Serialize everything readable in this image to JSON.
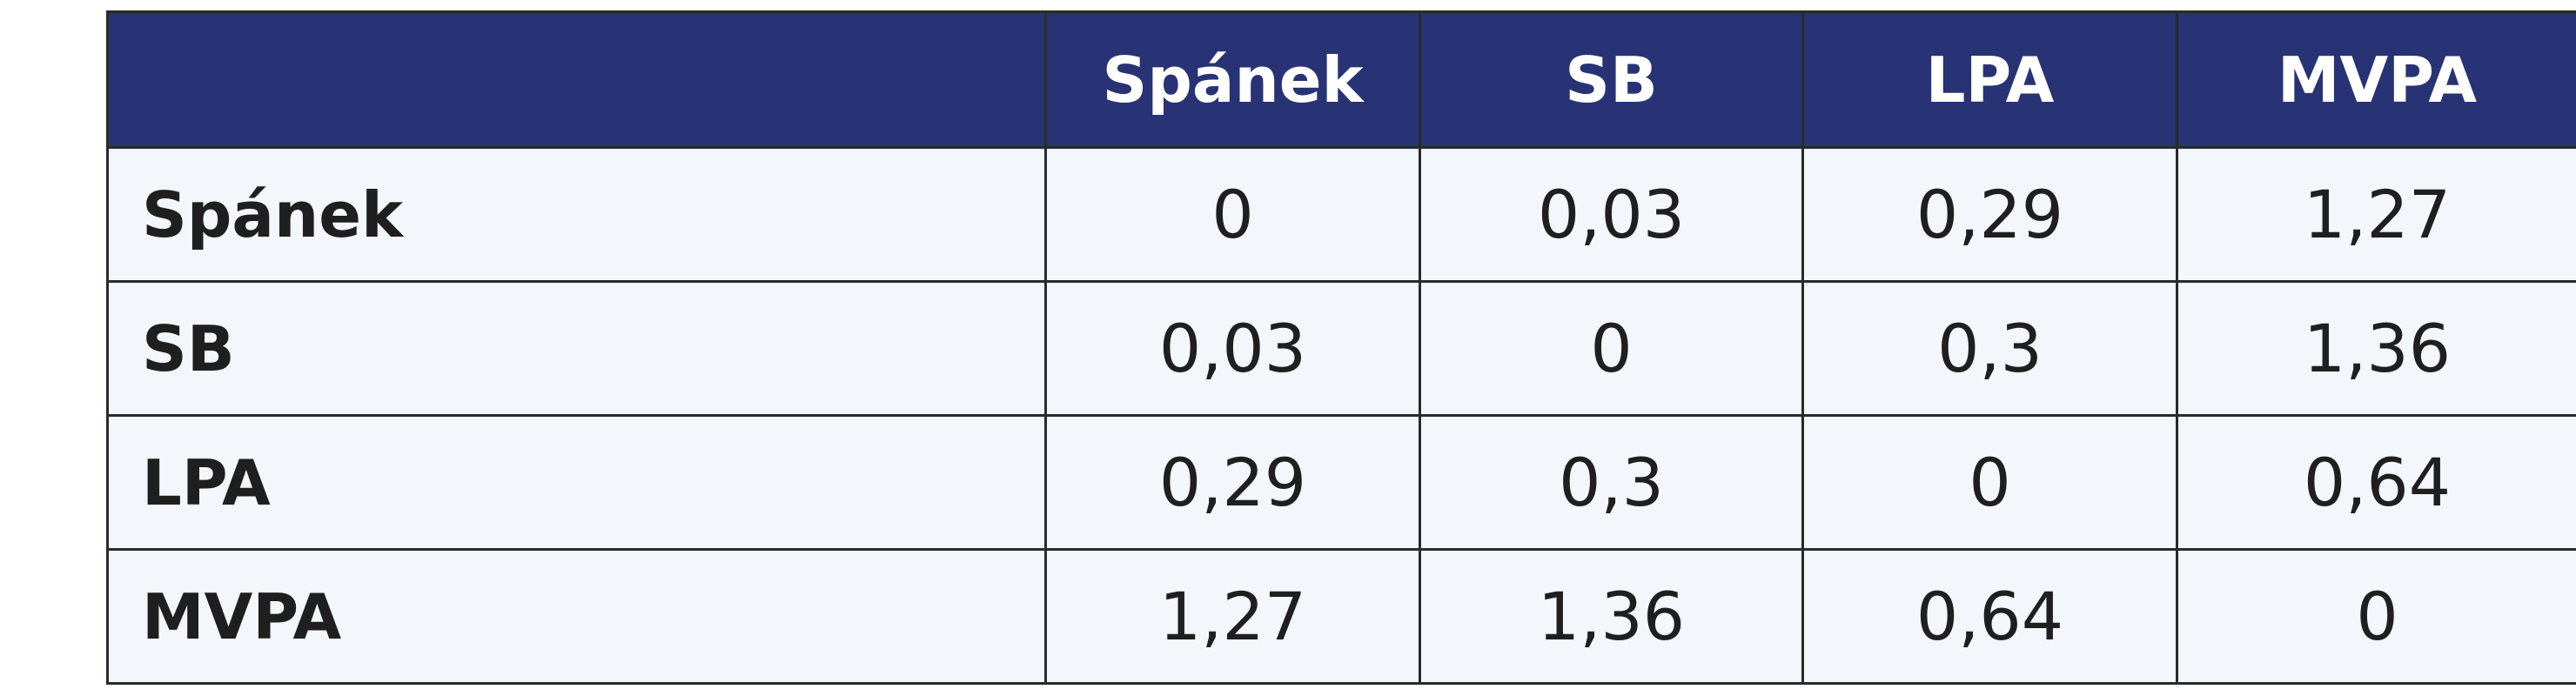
{
  "table": {
    "corner": "",
    "columns": [
      "Spánek",
      "SB",
      "LPA",
      "MVPA"
    ],
    "rows": [
      {
        "label": "Spánek",
        "values": [
          "0",
          "0,03",
          "0,29",
          "1,27"
        ]
      },
      {
        "label": "SB",
        "values": [
          "0,03",
          "0",
          "0,3",
          "1,36"
        ]
      },
      {
        "label": "LPA",
        "values": [
          "0,29",
          "0,3",
          "0",
          "0,64"
        ]
      },
      {
        "label": "MVPA",
        "values": [
          "1,27",
          "1,36",
          "0,64",
          "0"
        ]
      }
    ]
  },
  "colors": {
    "header_bg": "#283375",
    "header_text": "#ffffff",
    "cell_bg": "#f3f6fa",
    "border": "#2a2a2a"
  }
}
